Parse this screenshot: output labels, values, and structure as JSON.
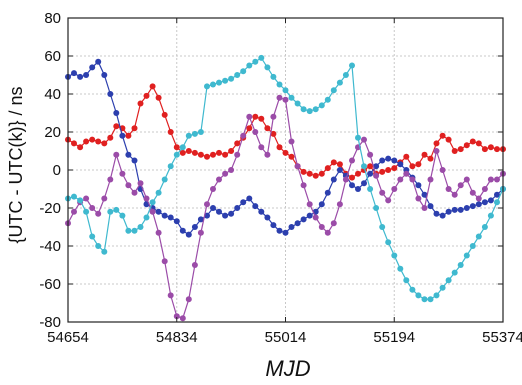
{
  "chart_data": {
    "type": "line",
    "xlabel": "MJD",
    "ylabel": "{UTC - UTC(k)} / ns",
    "xlim": [
      54654,
      55374
    ],
    "ylim": [
      -80,
      80
    ],
    "xticks": [
      54654,
      54834,
      55014,
      55194,
      55374
    ],
    "yticks": [
      -80,
      -60,
      -40,
      -20,
      0,
      20,
      40,
      60,
      80
    ],
    "grid": true,
    "legend": "none",
    "series": [
      {
        "color": "#e02020",
        "x": [
          54654,
          54664,
          54674,
          54684,
          54694,
          54704,
          54714,
          54724,
          54734,
          54744,
          54754,
          54764,
          54774,
          54784,
          54794,
          54804,
          54814,
          54824,
          54834,
          54844,
          54854,
          54864,
          54874,
          54884,
          54894,
          54904,
          54914,
          54924,
          54934,
          54944,
          54954,
          54964,
          54974,
          54984,
          54994,
          55004,
          55014,
          55024,
          55034,
          55044,
          55054,
          55064,
          55074,
          55084,
          55094,
          55104,
          55114,
          55124,
          55134,
          55144,
          55154,
          55164,
          55174,
          55184,
          55194,
          55204,
          55214,
          55224,
          55234,
          55244,
          55254,
          55264,
          55274,
          55284,
          55294,
          55304,
          55314,
          55324,
          55334,
          55344,
          55354,
          55364,
          55374
        ],
        "y": [
          16,
          14,
          12,
          15,
          16,
          15,
          14,
          17,
          23,
          22,
          18,
          22,
          35,
          39,
          44,
          38,
          29,
          20,
          12,
          9,
          10,
          9,
          8,
          7,
          8,
          9,
          8,
          10,
          14,
          17,
          22,
          28,
          27,
          22,
          19,
          12,
          9,
          7,
          2,
          -1,
          -2,
          -3,
          -2,
          1,
          4,
          3,
          -2,
          -4,
          -2,
          0,
          2,
          -2,
          -1,
          0,
          1,
          4,
          7,
          2,
          3,
          8,
          6,
          14,
          18,
          16,
          10,
          11,
          13,
          15,
          14,
          11,
          12,
          11,
          11
        ]
      },
      {
        "color": "#2c3fae",
        "x": [
          54654,
          54664,
          54674,
          54684,
          54694,
          54704,
          54714,
          54724,
          54734,
          54744,
          54754,
          54764,
          54774,
          54784,
          54794,
          54804,
          54814,
          54824,
          54834,
          54844,
          54854,
          54864,
          54874,
          54884,
          54894,
          54904,
          54914,
          54924,
          54934,
          54944,
          54954,
          54964,
          54974,
          54984,
          54994,
          55004,
          55014,
          55024,
          55034,
          55044,
          55054,
          55064,
          55074,
          55084,
          55094,
          55104,
          55114,
          55124,
          55134,
          55144,
          55154,
          55164,
          55174,
          55184,
          55194,
          55204,
          55214,
          55224,
          55234,
          55244,
          55254,
          55264,
          55274,
          55284,
          55294,
          55304,
          55314,
          55324,
          55334,
          55344,
          55354,
          55364,
          55374
        ],
        "y": [
          49,
          51,
          49,
          50,
          54,
          57,
          50,
          40,
          30,
          18,
          8,
          5,
          -10,
          -18,
          -20,
          -22,
          -24,
          -25,
          -27,
          -32,
          -34,
          -30,
          -26,
          -24,
          -20,
          -22,
          -24,
          -23,
          -20,
          -17,
          -15,
          -19,
          -22,
          -25,
          -29,
          -32,
          -33,
          -30,
          -28,
          -26,
          -24,
          -22,
          -18,
          -12,
          -5,
          0,
          -3,
          -8,
          -10,
          -7,
          -2,
          2,
          5,
          6,
          5,
          3,
          0,
          -4,
          -8,
          -13,
          -19,
          -23,
          -24,
          -22,
          -21,
          -21,
          -20,
          -19,
          -18,
          -17,
          -16,
          -13,
          -10
        ]
      },
      {
        "color": "#9b4ca8",
        "x": [
          54654,
          54664,
          54674,
          54684,
          54694,
          54704,
          54714,
          54724,
          54734,
          54744,
          54754,
          54764,
          54774,
          54784,
          54794,
          54804,
          54814,
          54824,
          54834,
          54844,
          54854,
          54864,
          54874,
          54884,
          54894,
          54904,
          54914,
          54924,
          54934,
          54944,
          54954,
          54964,
          54974,
          54984,
          54994,
          55004,
          55014,
          55024,
          55034,
          55044,
          55054,
          55064,
          55074,
          55084,
          55094,
          55104,
          55114,
          55124,
          55134,
          55144,
          55154,
          55164,
          55174,
          55184,
          55194,
          55204,
          55214,
          55224,
          55234,
          55244,
          55254,
          55264,
          55274,
          55284,
          55294,
          55304,
          55314,
          55324,
          55334,
          55344,
          55354,
          55364,
          55374
        ],
        "y": [
          -28,
          -22,
          -17,
          -15,
          -20,
          -23,
          -15,
          -5,
          8,
          -2,
          -8,
          -12,
          -7,
          -15,
          -22,
          -33,
          -48,
          -66,
          -77,
          -78,
          -68,
          -50,
          -33,
          -18,
          -10,
          -5,
          -2,
          0,
          8,
          18,
          28,
          20,
          12,
          8,
          28,
          38,
          37,
          15,
          2,
          -8,
          -18,
          -25,
          -30,
          -33,
          -28,
          -18,
          -5,
          5,
          12,
          16,
          8,
          -3,
          -12,
          -16,
          -10,
          -5,
          -2,
          -5,
          -15,
          -20,
          -5,
          10,
          0,
          -10,
          -13,
          -8,
          -5,
          -12,
          -15,
          -10,
          -5,
          -5,
          -2
        ]
      },
      {
        "color": "#3fb9cf",
        "x": [
          54654,
          54664,
          54674,
          54684,
          54694,
          54704,
          54714,
          54724,
          54734,
          54744,
          54754,
          54764,
          54774,
          54784,
          54794,
          54804,
          54814,
          54824,
          54834,
          54844,
          54854,
          54864,
          54874,
          54884,
          54894,
          54904,
          54914,
          54924,
          54934,
          54944,
          54954,
          54964,
          54974,
          54984,
          54994,
          55004,
          55014,
          55024,
          55034,
          55044,
          55054,
          55064,
          55074,
          55084,
          55094,
          55104,
          55114,
          55124,
          55134,
          55144,
          55154,
          55164,
          55174,
          55184,
          55194,
          55204,
          55214,
          55224,
          55234,
          55244,
          55254,
          55264,
          55274,
          55284,
          55294,
          55304,
          55314,
          55324,
          55334,
          55344,
          55354,
          55364,
          55374
        ],
        "y": [
          -15,
          -14,
          -16,
          -22,
          -35,
          -40,
          -43,
          -22,
          -21,
          -24,
          -32,
          -32,
          -30,
          -25,
          -17,
          -12,
          -5,
          2,
          8,
          12,
          18,
          19,
          20,
          44,
          45,
          46,
          47,
          48,
          50,
          52,
          55,
          57,
          59,
          54,
          49,
          45,
          42,
          38,
          35,
          32,
          31,
          32,
          34,
          37,
          42,
          46,
          50,
          55,
          17,
          2,
          -10,
          -20,
          -30,
          -38,
          -45,
          -52,
          -58,
          -63,
          -66,
          -68,
          -68,
          -66,
          -62,
          -58,
          -54,
          -50,
          -45,
          -40,
          -35,
          -30,
          -24,
          -17,
          -10
        ]
      }
    ]
  }
}
